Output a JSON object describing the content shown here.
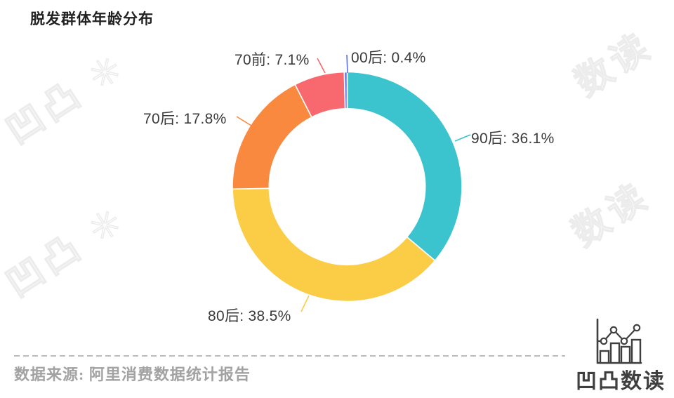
{
  "header": {
    "title": "脱发群体年龄分布"
  },
  "chart_data": {
    "type": "pie",
    "subtype": "donut",
    "title": "脱发群体年龄分布",
    "unit": "%",
    "start_angle": "12-oclock-clockwise",
    "inner_radius_ratio": 0.68,
    "legend": "none",
    "labels_style": "callout",
    "categories": [
      "90后",
      "80后",
      "70后",
      "70前",
      "00后"
    ],
    "values": [
      36.1,
      38.5,
      17.8,
      7.1,
      0.4
    ],
    "slices": [
      {
        "name": "90后",
        "value": 36.1,
        "label": "90后: 36.1%",
        "color": "#3BC3CE"
      },
      {
        "name": "80后",
        "value": 38.5,
        "label": "80后: 38.5%",
        "color": "#FBCC45"
      },
      {
        "name": "70后",
        "value": 17.8,
        "label": "70后: 17.8%",
        "color": "#F8893E"
      },
      {
        "name": "70前",
        "value": 7.1,
        "label": "70前: 7.1%",
        "color": "#F7686F"
      },
      {
        "name": "00后",
        "value": 0.4,
        "label": "00后: 0.4%",
        "color": "#5E72E4"
      }
    ]
  },
  "footer": {
    "source": "数据来源: 阿里消费数据统计报告"
  },
  "brand": {
    "name": "凹凸数读",
    "watermark_left": "凹凸 ✳",
    "watermark_right": "数读"
  }
}
